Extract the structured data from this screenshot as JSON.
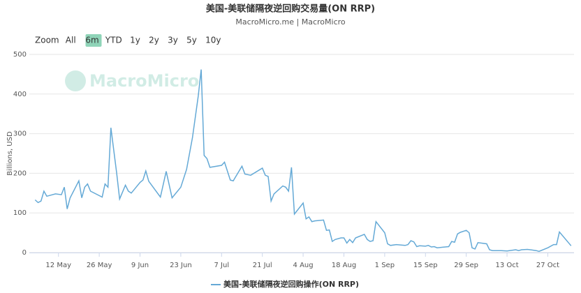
{
  "range_selector": {
    "label": "Zoom",
    "buttons": [
      "All",
      "6m",
      "YTD",
      "1y",
      "2y",
      "3y",
      "5y",
      "10y"
    ],
    "selected": "6m"
  },
  "watermark": "MacroMicro",
  "chart_data": {
    "type": "line",
    "title": "美国-美联储隔夜逆回购交易量(ON RRP)",
    "subtitle": "MacroMicro.me | MacroMicro",
    "y_label": "Billions, USD",
    "x": [
      "4 May",
      "5 May",
      "6 May",
      "7 May",
      "8 May",
      "11 May",
      "13 May",
      "14 May",
      "15 May",
      "16 May",
      "19 May",
      "20 May",
      "21 May",
      "22 May",
      "23 May",
      "27 May",
      "28 May",
      "29 May",
      "30 May",
      "1 Jun",
      "2 Jun",
      "4 Jun",
      "5 Jun",
      "6 Jun",
      "9 Jun",
      "10 Jun",
      "11 Jun",
      "12 Jun",
      "16 Jun",
      "18 Jun",
      "20 Jun",
      "23 Jun",
      "25 Jun",
      "27 Jun",
      "29 Jun",
      "30 Jun",
      "1 Jul",
      "2 Jul",
      "3 Jul",
      "7 Jul",
      "8 Jul",
      "10 Jul",
      "11 Jul",
      "14 Jul",
      "15 Jul",
      "17 Jul",
      "21 Jul",
      "22 Jul",
      "23 Jul",
      "24 Jul",
      "25 Jul",
      "28 Jul",
      "29 Jul",
      "30 Jul",
      "31 Jul",
      "1 Aug",
      "4 Aug",
      "5 Aug",
      "6 Aug",
      "7 Aug",
      "8 Aug",
      "11 Aug",
      "12 Aug",
      "13 Aug",
      "14 Aug",
      "15 Aug",
      "17 Aug",
      "18 Aug",
      "19 Aug",
      "20 Aug",
      "21 Aug",
      "22 Aug",
      "25 Aug",
      "26 Aug",
      "27 Aug",
      "28 Aug",
      "29 Aug",
      "1 Sep",
      "2 Sep",
      "3 Sep",
      "5 Sep",
      "8 Sep",
      "9 Sep",
      "10 Sep",
      "11 Sep",
      "12 Sep",
      "13 Sep",
      "15 Sep",
      "16 Sep",
      "17 Sep",
      "18 Sep",
      "19 Sep",
      "23 Sep",
      "24 Sep",
      "25 Sep",
      "26 Sep",
      "27 Sep",
      "29 Sep",
      "30 Sep",
      "1 Oct",
      "2 Oct",
      "3 Oct",
      "6 Oct",
      "7 Oct",
      "8 Oct",
      "11 Oct",
      "13 Oct",
      "16 Oct",
      "17 Oct",
      "18 Oct",
      "20 Oct",
      "22 Oct",
      "23 Oct",
      "24 Oct",
      "27 Oct",
      "29 Oct",
      "30 Oct",
      "31 Oct",
      "4 Nov"
    ],
    "series": [
      {
        "name": "美国-美联储隔夜逆回购操作(ON RRP)",
        "color": "#64a9d6",
        "values": [
          133,
          126,
          130,
          155,
          142,
          148,
          146,
          165,
          110,
          138,
          181,
          138,
          165,
          173,
          155,
          140,
          173,
          165,
          315,
          200,
          135,
          170,
          155,
          150,
          177,
          183,
          206,
          180,
          140,
          205,
          138,
          165,
          210,
          290,
          395,
          462,
          245,
          237,
          215,
          220,
          228,
          183,
          181,
          218,
          198,
          195,
          213,
          195,
          192,
          130,
          148,
          168,
          165,
          155,
          215,
          97,
          125,
          85,
          90,
          78,
          80,
          82,
          56,
          57,
          28,
          33,
          37,
          37,
          24,
          33,
          25,
          37,
          46,
          33,
          28,
          30,
          78,
          50,
          22,
          18,
          20,
          18,
          20,
          30,
          27,
          15,
          17,
          16,
          18,
          14,
          15,
          12,
          15,
          28,
          26,
          47,
          51,
          56,
          50,
          12,
          9,
          25,
          22,
          7,
          5,
          5,
          4,
          7,
          5,
          7,
          8,
          6,
          5,
          3,
          12,
          20,
          20,
          52,
          17
        ]
      }
    ],
    "xticks": [
      "12 May",
      "26 May",
      "9 Jun",
      "23 Jun",
      "7 Jul",
      "21 Jul",
      "4 Aug",
      "18 Aug",
      "1 Sep",
      "15 Sep",
      "29 Sep",
      "13 Oct",
      "27 Oct"
    ],
    "xlim": [
      "2 May",
      "5 Nov"
    ],
    "ylim": [
      0,
      500
    ],
    "yticks": [
      0,
      100,
      200,
      300,
      400,
      500
    ],
    "grid": true
  }
}
